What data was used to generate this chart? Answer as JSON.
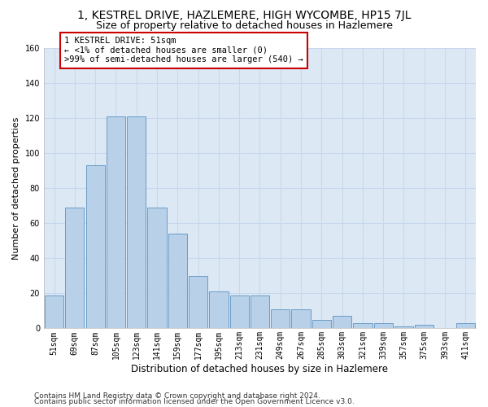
{
  "title": "1, KESTREL DRIVE, HAZLEMERE, HIGH WYCOMBE, HP15 7JL",
  "subtitle": "Size of property relative to detached houses in Hazlemere",
  "xlabel": "Distribution of detached houses by size in Hazlemere",
  "ylabel": "Number of detached properties",
  "categories": [
    "51sqm",
    "69sqm",
    "87sqm",
    "105sqm",
    "123sqm",
    "141sqm",
    "159sqm",
    "177sqm",
    "195sqm",
    "213sqm",
    "231sqm",
    "249sqm",
    "267sqm",
    "285sqm",
    "303sqm",
    "321sqm",
    "339sqm",
    "357sqm",
    "375sqm",
    "393sqm",
    "411sqm"
  ],
  "values": [
    19,
    69,
    93,
    121,
    121,
    69,
    54,
    30,
    21,
    19,
    19,
    11,
    11,
    5,
    7,
    3,
    3,
    1,
    2,
    0,
    3
  ],
  "bar_color": "#b8d0e8",
  "bar_edge_color": "#6a9dc8",
  "annotation_line1": "1 KESTREL DRIVE: 51sqm",
  "annotation_line2": "← <1% of detached houses are smaller (0)",
  "annotation_line3": ">99% of semi-detached houses are larger (540) →",
  "annotation_box_color": "#ffffff",
  "annotation_box_edge_color": "#cc0000",
  "ylim": [
    0,
    160
  ],
  "yticks": [
    0,
    20,
    40,
    60,
    80,
    100,
    120,
    140,
    160
  ],
  "grid_color": "#c8d8ec",
  "bg_color": "#dde8f5",
  "footer_line1": "Contains HM Land Registry data © Crown copyright and database right 2024.",
  "footer_line2": "Contains public sector information licensed under the Open Government Licence v3.0.",
  "title_fontsize": 10,
  "subtitle_fontsize": 9,
  "xlabel_fontsize": 8.5,
  "ylabel_fontsize": 8,
  "tick_fontsize": 7,
  "annotation_fontsize": 7.5,
  "footer_fontsize": 6.5
}
